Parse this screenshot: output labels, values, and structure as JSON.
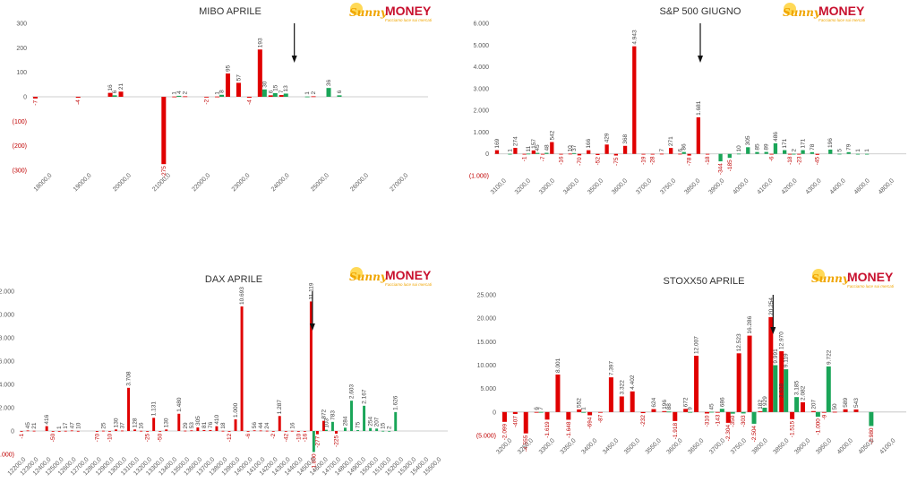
{
  "logo": {
    "brand_a": "Sunny",
    "brand_b": "MONEY",
    "tagline": "Facciamo luce sui mercati"
  },
  "colors": {
    "up": "#e00000",
    "down": "#1aa558",
    "axis": "#bfbfbf",
    "text": "#595959",
    "negative_text": "#c00000"
  },
  "chart_data": [
    {
      "type": "bar",
      "title": "MIBO APRILE",
      "ylim": [
        -300,
        300
      ],
      "yticks": [
        300,
        200,
        100,
        0,
        -100,
        -200,
        -300
      ],
      "ytick_labels": [
        "300",
        "200",
        "100",
        "0",
        "(100)",
        "(200)",
        "(300)"
      ],
      "xtick_labels": [
        "18000,0",
        "19000,0",
        "20000,0",
        "21000,0",
        "22000,0",
        "23000,0",
        "24000,0",
        "25000,0",
        "26000,0",
        "27000,0"
      ],
      "categories": [
        "18000",
        "18250",
        "18500",
        "18750",
        "19000",
        "19250",
        "19500",
        "19750",
        "20000",
        "20250",
        "20500",
        "20750",
        "21000",
        "21250",
        "21500",
        "21750",
        "22000",
        "22250",
        "22500",
        "22750",
        "23000",
        "23250",
        "23500",
        "23750",
        "24000",
        "24250",
        "24500",
        "24750",
        "25000",
        "25250",
        "25500",
        "25750",
        "26000",
        "26250",
        "26500",
        "26750",
        "27000"
      ],
      "series": [
        {
          "color": "up",
          "values": [
            -7,
            null,
            null,
            null,
            -4,
            null,
            null,
            16,
            21,
            null,
            null,
            null,
            -275,
            1,
            2,
            null,
            -2,
            1,
            95,
            57,
            -4,
            193,
            6,
            7,
            null,
            null,
            2,
            null,
            null,
            null,
            null,
            null,
            null,
            null,
            null,
            null,
            null
          ]
        },
        {
          "color": "down",
          "values": [
            null,
            null,
            null,
            null,
            null,
            null,
            null,
            6,
            null,
            null,
            null,
            null,
            null,
            4,
            null,
            null,
            null,
            8,
            null,
            null,
            null,
            30,
            15,
            13,
            null,
            1,
            null,
            36,
            6,
            null,
            null,
            null,
            null,
            null,
            null,
            null,
            null
          ]
        }
      ],
      "arrow_at": "24000",
      "labels_display": {
        "-7": "-7",
        "-4": "-4",
        "-275": "-275",
        "-2": "-2"
      }
    },
    {
      "type": "bar",
      "title": "S&P 500 GIUGNO",
      "ylim": [
        -1000,
        6000
      ],
      "yticks": [
        6000,
        5000,
        4000,
        3000,
        2000,
        1000,
        0,
        -1000
      ],
      "ytick_labels": [
        "6.000",
        "5.000",
        "4.000",
        "3.000",
        "2.000",
        "1.000",
        "0",
        "(1.000)"
      ],
      "xtick_labels": [
        "3100,0",
        "3200,0",
        "3300,0",
        "3400,0",
        "3500,0",
        "3600,0",
        "3700,0",
        "3750,0",
        "3850,0",
        "3900,0",
        "4000,0",
        "4100,0",
        "4200,0",
        "4300,0",
        "4400,0",
        "4600,0",
        "4800,0"
      ],
      "categories": [
        "c0",
        "c1",
        "c2",
        "c3",
        "c4",
        "c5",
        "c6",
        "c7",
        "c8",
        "c9",
        "c10",
        "c11",
        "c12",
        "c13",
        "c14",
        "c15",
        "c16",
        "c17",
        "c18",
        "c19",
        "c20",
        "c21",
        "c22",
        "c23",
        "c24",
        "c25",
        "c26",
        "c27",
        "c28",
        "c29",
        "c30",
        "c31",
        "c32",
        "c33",
        "c34",
        "c35",
        "c36",
        "c37",
        "c38",
        "c39",
        "c40",
        "c41",
        "c42",
        "c43",
        "c44"
      ],
      "series": [
        {
          "color": "up",
          "values": [
            169,
            null,
            274,
            -1,
            157,
            -7,
            542,
            -16,
            10,
            -70,
            166,
            -52,
            429,
            -75,
            368,
            4943,
            -19,
            -28,
            7,
            271,
            6,
            -78,
            1681,
            -18,
            null,
            null,
            null,
            null,
            null,
            null,
            -6,
            null,
            -18,
            -23,
            null,
            -45,
            null,
            null,
            null,
            null,
            null,
            null,
            null,
            null,
            null
          ]
        },
        {
          "color": "down",
          "values": [
            null,
            1,
            null,
            11,
            45,
            48,
            null,
            null,
            37,
            null,
            null,
            null,
            null,
            null,
            null,
            null,
            null,
            null,
            null,
            null,
            86,
            null,
            null,
            null,
            -344,
            -185,
            10,
            305,
            85,
            89,
            486,
            171,
            2,
            171,
            78,
            null,
            196,
            5,
            79,
            1,
            1,
            null,
            null,
            null,
            null
          ]
        }
      ],
      "arrow_at": "c22"
    },
    {
      "type": "bar",
      "title": "DAX APRILE",
      "ylim": [
        -2000,
        12000
      ],
      "yticks": [
        12000,
        10000,
        8000,
        6000,
        4000,
        2000,
        0,
        -2000
      ],
      "ytick_labels": [
        "12.000",
        "10.000",
        "8.000",
        "6.000",
        "4.000",
        "2.000",
        "0",
        "(2.000)"
      ],
      "xtick_labels": [
        "12200,0",
        "12300,0",
        "12400,0",
        "12500,0",
        "12600,0",
        "12700,0",
        "12800,0",
        "12900,0",
        "13000,0",
        "13100,0",
        "13200,0",
        "13300,0",
        "13400,0",
        "13500,0",
        "13600,0",
        "13700,0",
        "13800,0",
        "13900,0",
        "14000,0",
        "14100,0",
        "14200,0",
        "14300,0",
        "14400,0",
        "14500,0",
        "14600,0",
        "14700,0",
        "14800,0",
        "14900,0",
        "15000,0",
        "15100,0",
        "15200,0",
        "15300,0",
        "15400,0",
        "15500,0"
      ],
      "categories": [
        "d0",
        "d1",
        "d2",
        "d3",
        "d4",
        "d5",
        "d6",
        "d7",
        "d8",
        "d9",
        "d10",
        "d11",
        "d12",
        "d13",
        "d14",
        "d15",
        "d16",
        "d17",
        "d18",
        "d19",
        "d20",
        "d21",
        "d22",
        "d23",
        "d24",
        "d25",
        "d26",
        "d27",
        "d28",
        "d29",
        "d30",
        "d31",
        "d32",
        "d33",
        "d34",
        "d35",
        "d36",
        "d37",
        "d38",
        "d39",
        "d40",
        "d41",
        "d42",
        "d43",
        "d44",
        "d45",
        "d46",
        "d47",
        "d48",
        "d49",
        "d50",
        "d51",
        "d52",
        "d53",
        "d54",
        "d55",
        "d56",
        "d57",
        "d58",
        "d59",
        "d60",
        "d61",
        "d62",
        "d63",
        "d64",
        "d65",
        "d66",
        "d67"
      ],
      "series": [
        {
          "color": "up",
          "values": [
            -1,
            45,
            21,
            null,
            416,
            -50,
            1,
            17,
            47,
            10,
            null,
            null,
            -70,
            25,
            -10,
            130,
            37,
            3708,
            128,
            16,
            -25,
            1131,
            -50,
            130,
            null,
            1480,
            29,
            53,
            305,
            81,
            76,
            410,
            18,
            -12,
            1000,
            10693,
            -6,
            56,
            44,
            24,
            -2,
            1287,
            -42,
            16,
            -10,
            -16,
            11119,
            -277,
            872,
            null,
            -225,
            null,
            null,
            null,
            null,
            null,
            null,
            null,
            null,
            null,
            null,
            null,
            null,
            null,
            null,
            null,
            null,
            null
          ]
        },
        {
          "color": "down",
          "values": [
            null,
            null,
            null,
            null,
            null,
            null,
            null,
            null,
            null,
            null,
            null,
            null,
            null,
            null,
            null,
            null,
            null,
            null,
            null,
            null,
            null,
            null,
            null,
            null,
            null,
            null,
            null,
            null,
            null,
            null,
            null,
            null,
            null,
            null,
            null,
            null,
            null,
            null,
            null,
            null,
            null,
            null,
            null,
            null,
            null,
            null,
            -1800,
            null,
            103,
            783,
            null,
            284,
            2603,
            75,
            2167,
            254,
            207,
            15,
            2,
            1626,
            null,
            null,
            null,
            null,
            null,
            null,
            null,
            null
          ]
        }
      ],
      "arrow_at": "d46"
    },
    {
      "type": "bar",
      "title": "STOXX50 APRILE",
      "ylim": [
        -5000,
        25000
      ],
      "yticks": [
        25000,
        20000,
        15000,
        10000,
        5000,
        0,
        -5000
      ],
      "ytick_labels": [
        "25.000",
        "20.000",
        "15.000",
        "10.000",
        "5.000",
        "0",
        "(5.000)"
      ],
      "xtick_labels": [
        "3200,0",
        "3250,0",
        "3300,0",
        "3350,0",
        "3400,0",
        "3450,0",
        "3500,0",
        "3550,0",
        "3600,0",
        "3650,0",
        "3700,0",
        "3750,0",
        "3800,0",
        "3850,0",
        "3900,0",
        "3950,0",
        "4000,0",
        "4050,0",
        "4100,0"
      ],
      "categories": [
        "s0",
        "s1",
        "s2",
        "s3",
        "s4",
        "s5",
        "s6",
        "s7",
        "s8",
        "s9",
        "s10",
        "s11",
        "s12",
        "s13",
        "s14",
        "s15",
        "s16",
        "s17",
        "s18",
        "s19",
        "s20",
        "s21",
        "s22",
        "s23",
        "s24",
        "s25",
        "s26",
        "s27",
        "s28",
        "s29",
        "s30",
        "s31",
        "s32",
        "s33",
        "s34",
        "s35",
        "s36",
        "s37"
      ],
      "series": [
        {
          "color": "up",
          "values": [
            -2099,
            -407,
            -4555,
            6,
            -1619,
            8001,
            -1648,
            552,
            -694,
            -87,
            7397,
            3322,
            4402,
            -232,
            624,
            196,
            -1918,
            672,
            12007,
            -310,
            -143,
            -2304,
            12523,
            16286,
            182,
            20254,
            12970,
            -1515,
            2082,
            207,
            -9,
            50,
            589,
            543,
            null,
            null,
            null,
            null
          ]
        },
        {
          "color": "down",
          "values": [
            null,
            null,
            null,
            7,
            null,
            null,
            null,
            1,
            null,
            null,
            null,
            null,
            null,
            null,
            null,
            88,
            null,
            9,
            null,
            45,
            686,
            -350,
            -303,
            -2504,
            929,
            9991,
            9119,
            3185,
            null,
            -1000,
            9722,
            null,
            null,
            null,
            -2980,
            null,
            null,
            null
          ]
        }
      ],
      "annotations": [
        "3.638"
      ],
      "arrow_at": "s25"
    }
  ]
}
